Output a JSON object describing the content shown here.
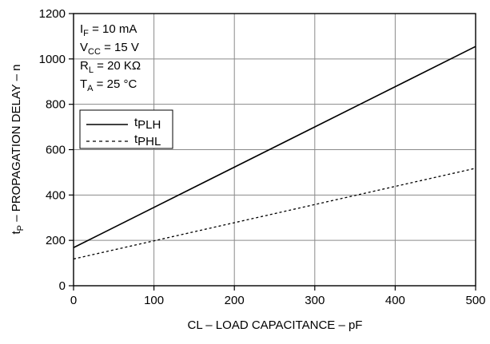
{
  "chart_data": {
    "type": "line",
    "x_axis": {
      "label": "CL – LOAD CAPACITANCE – pF",
      "ticks": [
        0,
        100,
        200,
        300,
        400,
        500
      ],
      "range": [
        0,
        500
      ]
    },
    "y_axis": {
      "label_main": "t",
      "label_sub": "P",
      "label_rest": " – PROPAGATION DELAY – n",
      "ticks": [
        0,
        200,
        400,
        600,
        800,
        1000,
        1200
      ],
      "range": [
        0,
        1200
      ]
    },
    "grid": true,
    "conditions": [
      {
        "main": "I",
        "sub": "F",
        "rest": " = 10 mA"
      },
      {
        "main": "V",
        "sub": "CC",
        "rest": " = 15 V"
      },
      {
        "main": "R",
        "sub": "L",
        "rest": " = 20 KΩ"
      },
      {
        "main": "T",
        "sub": "A",
        "rest": " = 25 °C"
      }
    ],
    "legend_position": "upper-left",
    "series": [
      {
        "name": "tPLH",
        "name_main": "t",
        "name_sub": "PLH",
        "style": "solid",
        "x": [
          0,
          500
        ],
        "y": [
          168,
          1055
        ]
      },
      {
        "name": "tPHL",
        "name_main": "t",
        "name_sub": "PHL",
        "style": "dashed",
        "x": [
          0,
          500
        ],
        "y": [
          118,
          518
        ]
      }
    ]
  }
}
